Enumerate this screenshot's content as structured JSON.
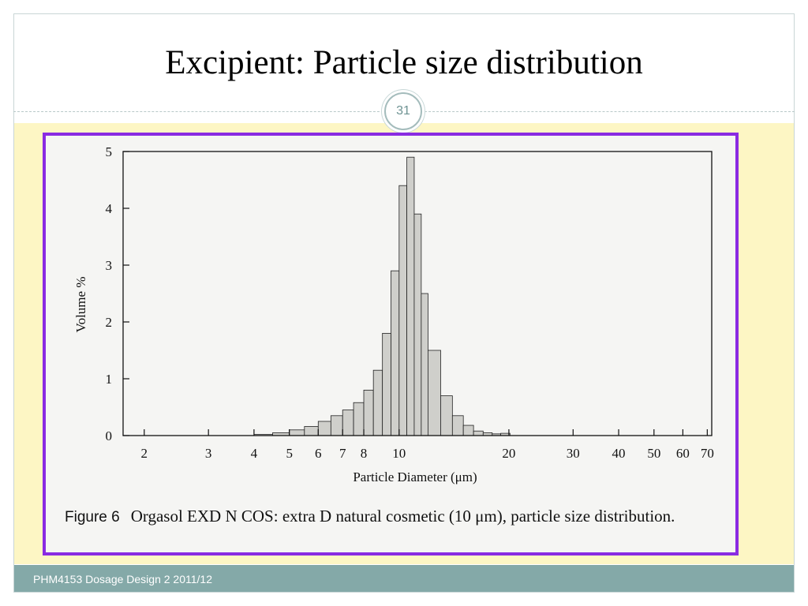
{
  "slide": {
    "title": "Excipient: Particle size distribution",
    "number": "31",
    "footer": "PHM4153 Dosage Design 2 2011/12"
  },
  "figure": {
    "caption_label": "Figure 6",
    "caption_text": "Orgasol EXD N COS: extra D natural cosmetic (10 μm), particle size distribution."
  },
  "chart_data": {
    "type": "bar",
    "xlabel": "Particle Diameter (μm)",
    "ylabel": "Volume %",
    "x_scale": "log",
    "xlim": [
      1.75,
      72
    ],
    "ylim": [
      0,
      5
    ],
    "x_ticks": [
      2,
      3,
      4,
      5,
      6,
      7,
      8,
      10,
      20,
      30,
      40,
      50,
      60,
      70
    ],
    "y_ticks": [
      0,
      1,
      2,
      3,
      4,
      5
    ],
    "x": [
      4.0,
      4.5,
      5.0,
      5.5,
      6.0,
      6.5,
      7.0,
      7.5,
      8.0,
      8.5,
      9.0,
      9.5,
      10.0,
      10.5,
      11.0,
      11.5,
      12.0,
      13.0,
      14.0,
      15.0,
      16.0,
      17.0,
      18.0,
      19.0
    ],
    "values": [
      0.02,
      0.05,
      0.1,
      0.16,
      0.25,
      0.35,
      0.45,
      0.58,
      0.8,
      1.15,
      1.8,
      2.9,
      4.4,
      4.9,
      3.9,
      2.5,
      1.5,
      0.7,
      0.35,
      0.18,
      0.08,
      0.05,
      0.03,
      0.04
    ]
  }
}
